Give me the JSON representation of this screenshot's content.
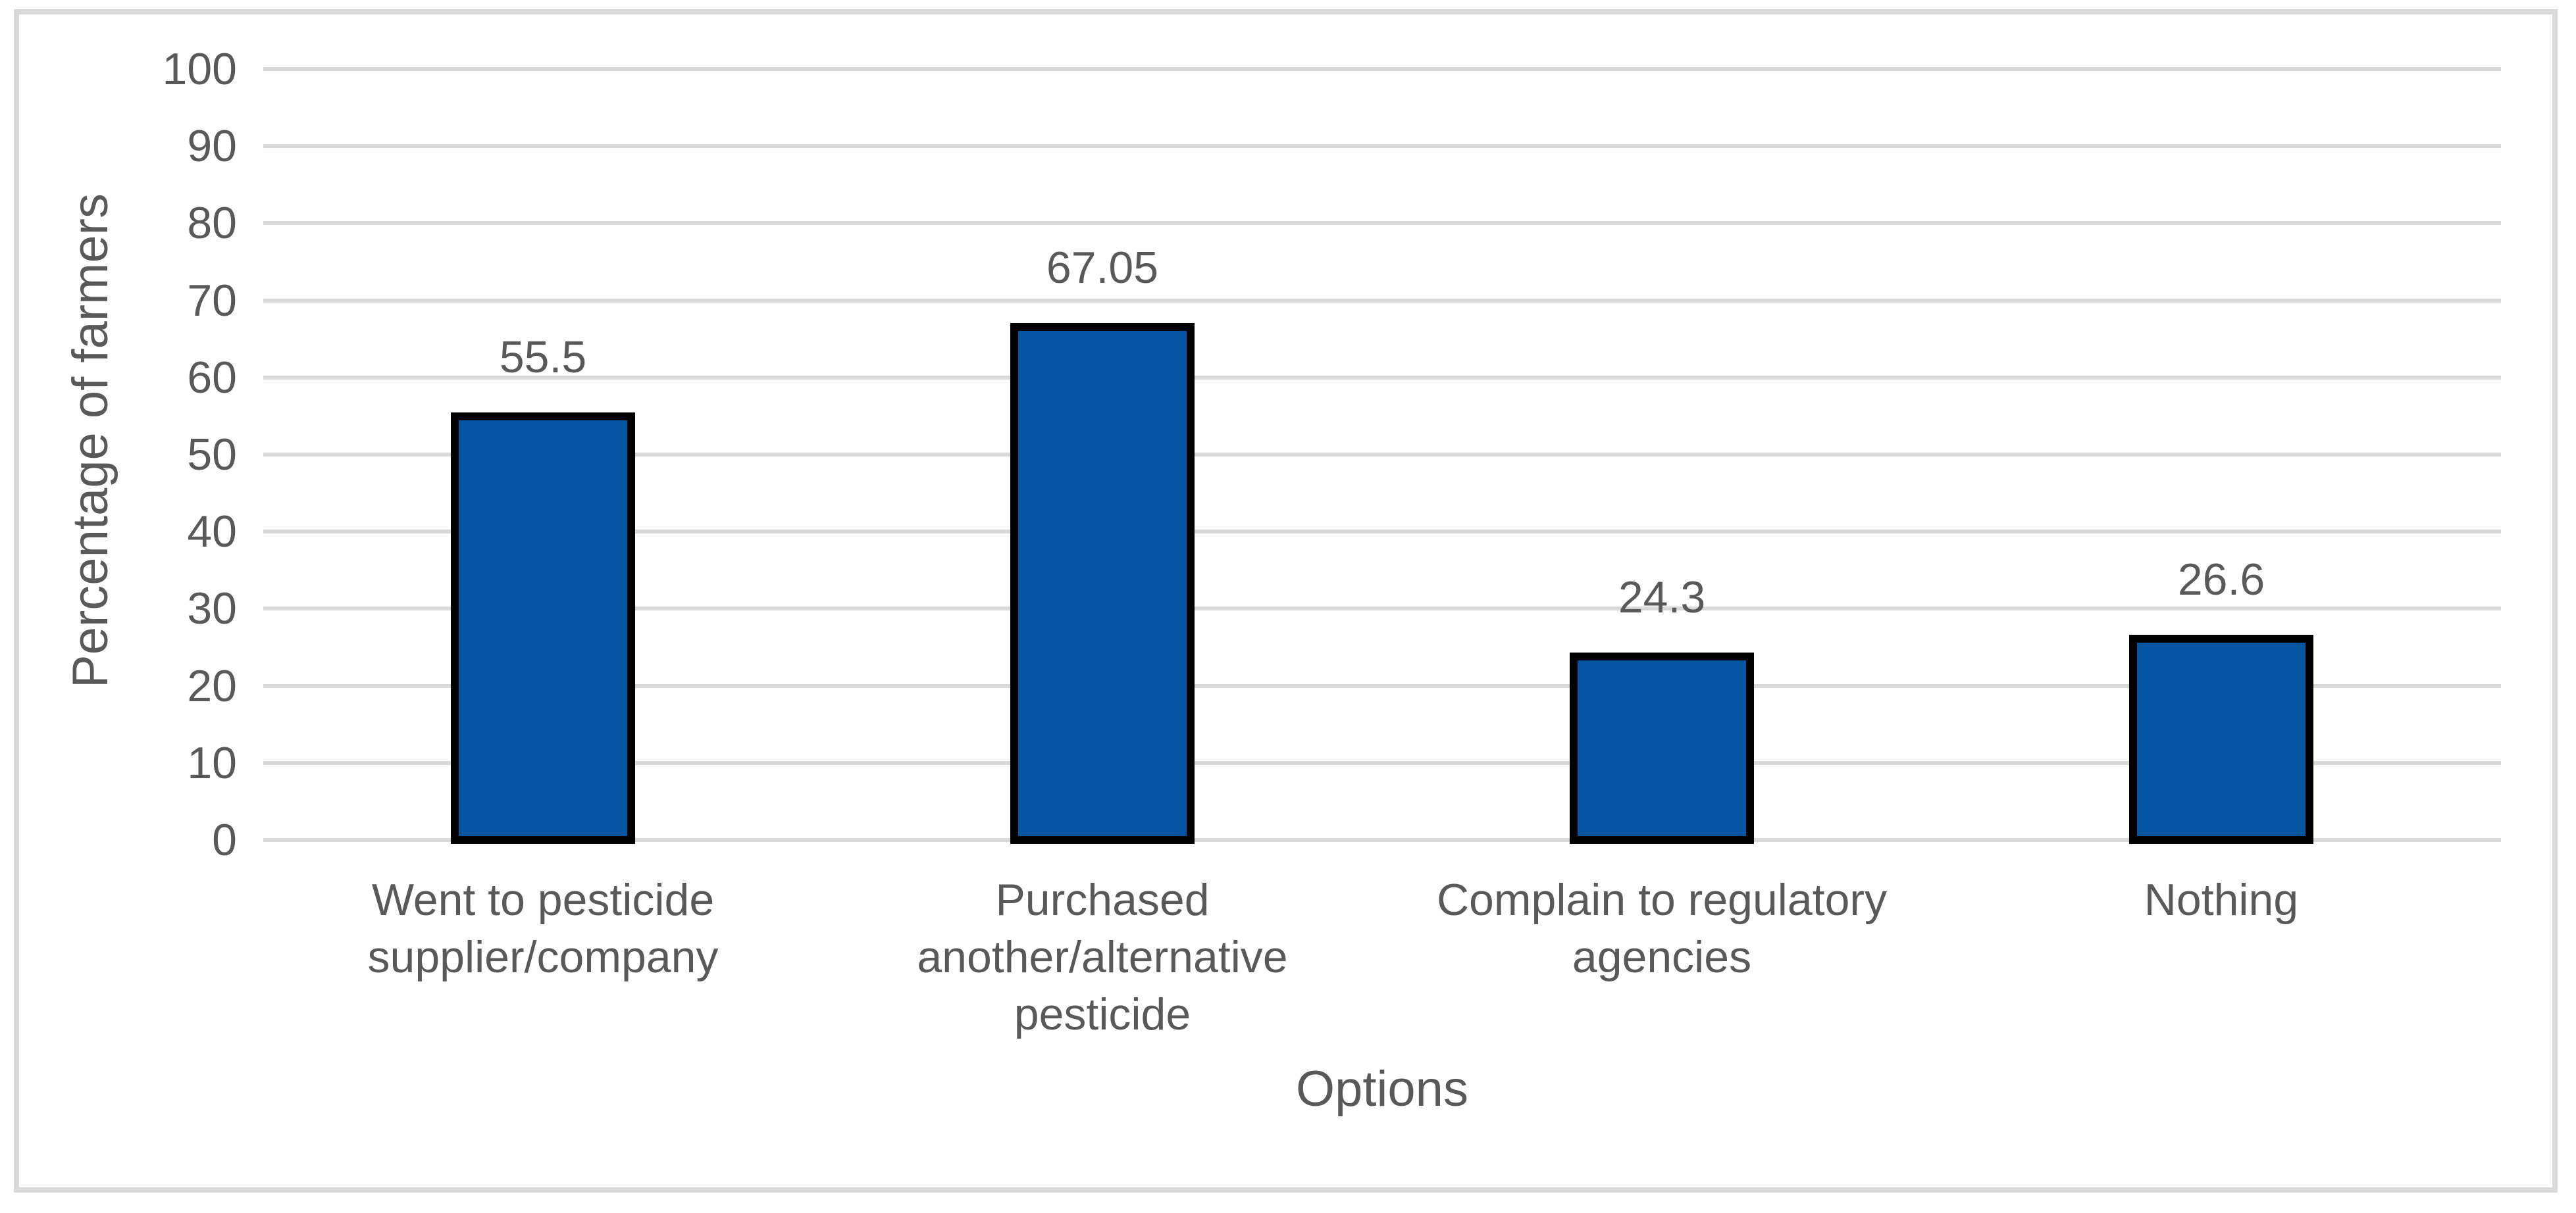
{
  "figure": {
    "background_color": "#FFFFFF",
    "frame_border_color": "#D9D9D9"
  },
  "chart_data": {
    "type": "bar",
    "title": "",
    "categories": [
      "Went to pesticide\nsupplier/company",
      "Purchased\nanother/alternative\npesticide",
      "Complain to regulatory\nagencies",
      "Nothing"
    ],
    "values": [
      55.5,
      67.05,
      24.3,
      26.6
    ],
    "data_labels": [
      "55.5",
      "67.05",
      "24.3",
      "26.6"
    ],
    "xlabel": "Options",
    "ylabel": "Percentage of farmers",
    "ylim": [
      0,
      100
    ],
    "yticks": [
      0,
      10,
      20,
      30,
      40,
      50,
      60,
      70,
      80,
      90,
      100
    ],
    "grid": "horizontal gridlines on, no vertical gridlines",
    "legend_position": "none",
    "colors": {
      "bar_fill": "#0355A1",
      "bar_border": "#000000",
      "gridline": "#D9D9D9",
      "text": "#595959"
    }
  }
}
